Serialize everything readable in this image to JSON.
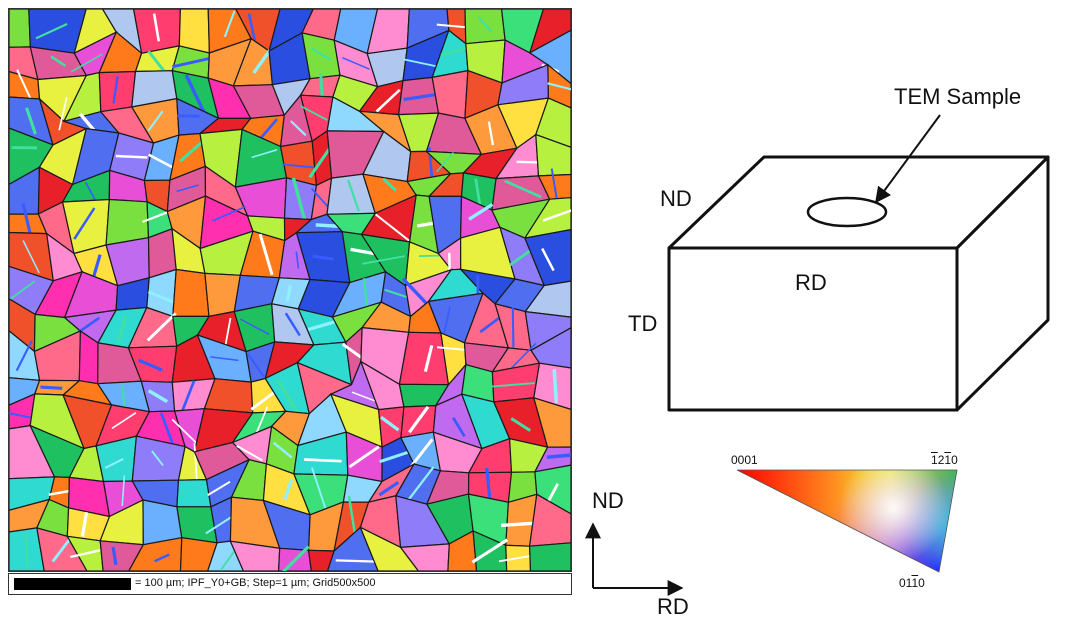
{
  "ebsd_map": {
    "scale_bar_caption": "= 100 µm; IPF_Y0+GB; Step=1 µm; Grid500x500"
  },
  "sample_diagram": {
    "tem_label": "TEM Sample",
    "face_labels": {
      "top": "ND",
      "front": "RD",
      "side": "TD"
    }
  },
  "axes": {
    "vertical": "ND",
    "horizontal": "RD"
  },
  "ipf_key": {
    "corner_0001": "0001",
    "corner_1210": {
      "pre": "",
      "bar1": "1",
      "mid": "2",
      "bar2": "1",
      "post": "0"
    },
    "corner_0110": {
      "pre": "01",
      "bar": "1",
      "post": "0"
    }
  },
  "colors": {
    "grain_palette": [
      "#e8202a",
      "#f0502a",
      "#ff7a1a",
      "#ff9a3c",
      "#ff3d6e",
      "#ff2fb0",
      "#e84fd6",
      "#c06af0",
      "#8f7cf8",
      "#4f6ef0",
      "#2a4fe0",
      "#6ab0ff",
      "#8fd8ff",
      "#b0c8f0",
      "#3ce07a",
      "#7ae040",
      "#b8f040",
      "#e8f040",
      "#ffe040",
      "#2fdad0",
      "#1ec060",
      "#ff6a8a",
      "#e05a9a",
      "#ff8cd0"
    ],
    "grain_boundary": "#1a1a1a"
  }
}
